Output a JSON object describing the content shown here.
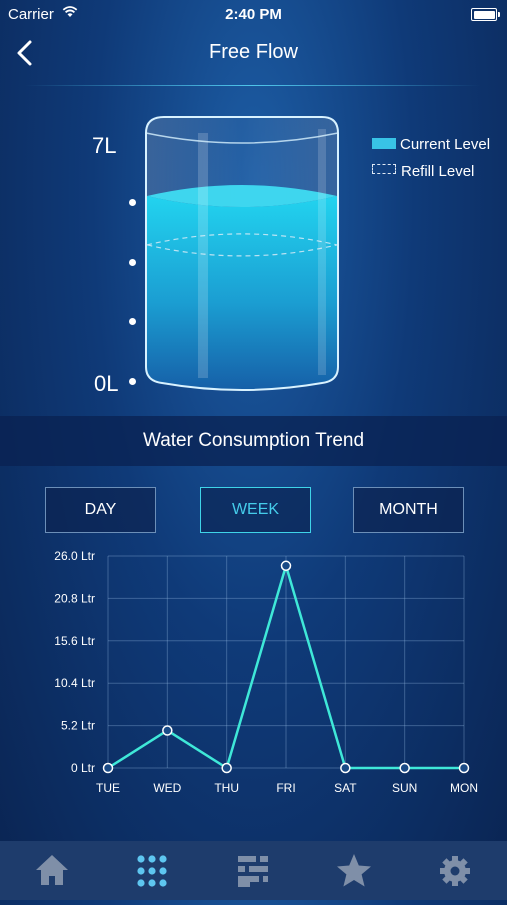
{
  "status_bar": {
    "carrier": "Carrier",
    "time": "2:40 PM"
  },
  "nav": {
    "title": "Free Flow",
    "back_icon": "chevron-left-icon"
  },
  "tank": {
    "max_label": "7L",
    "min_label": "0L",
    "capacity_liters": 7,
    "current_level_fraction": 0.77,
    "refill_level_fraction": 0.55
  },
  "legend": {
    "current": "Current Level",
    "refill": "Refill Level",
    "current_color": "#38c3e6"
  },
  "trend": {
    "title": "Water Consumption Trend"
  },
  "period_tabs": [
    {
      "label": "DAY",
      "active": false
    },
    {
      "label": "WEEK",
      "active": true
    },
    {
      "label": "MONTH",
      "active": false
    }
  ],
  "chart_data": {
    "type": "line",
    "categories": [
      "TUE",
      "WED",
      "THU",
      "FRI",
      "SAT",
      "SUN",
      "MON"
    ],
    "series": [
      {
        "values": [
          0,
          4.6,
          0,
          24.8,
          0,
          0,
          0
        ],
        "color": "#3fe8d8"
      }
    ],
    "ytick_labels": [
      "0 Ltr",
      "5.2 Ltr",
      "10.4 Ltr",
      "15.6 Ltr",
      "20.8 Ltr",
      "26.0 Ltr"
    ],
    "ylim": [
      0,
      26
    ],
    "grid": true
  },
  "tab_bar": {
    "items": [
      {
        "icon": "home-icon",
        "active": false
      },
      {
        "icon": "grid-dots-icon",
        "active": true
      },
      {
        "icon": "sliders-icon",
        "active": false
      },
      {
        "icon": "star-icon",
        "active": false
      },
      {
        "icon": "gear-icon",
        "active": false
      }
    ],
    "active_color": "#5ec6f0",
    "inactive_color": "#7f8fa8"
  }
}
